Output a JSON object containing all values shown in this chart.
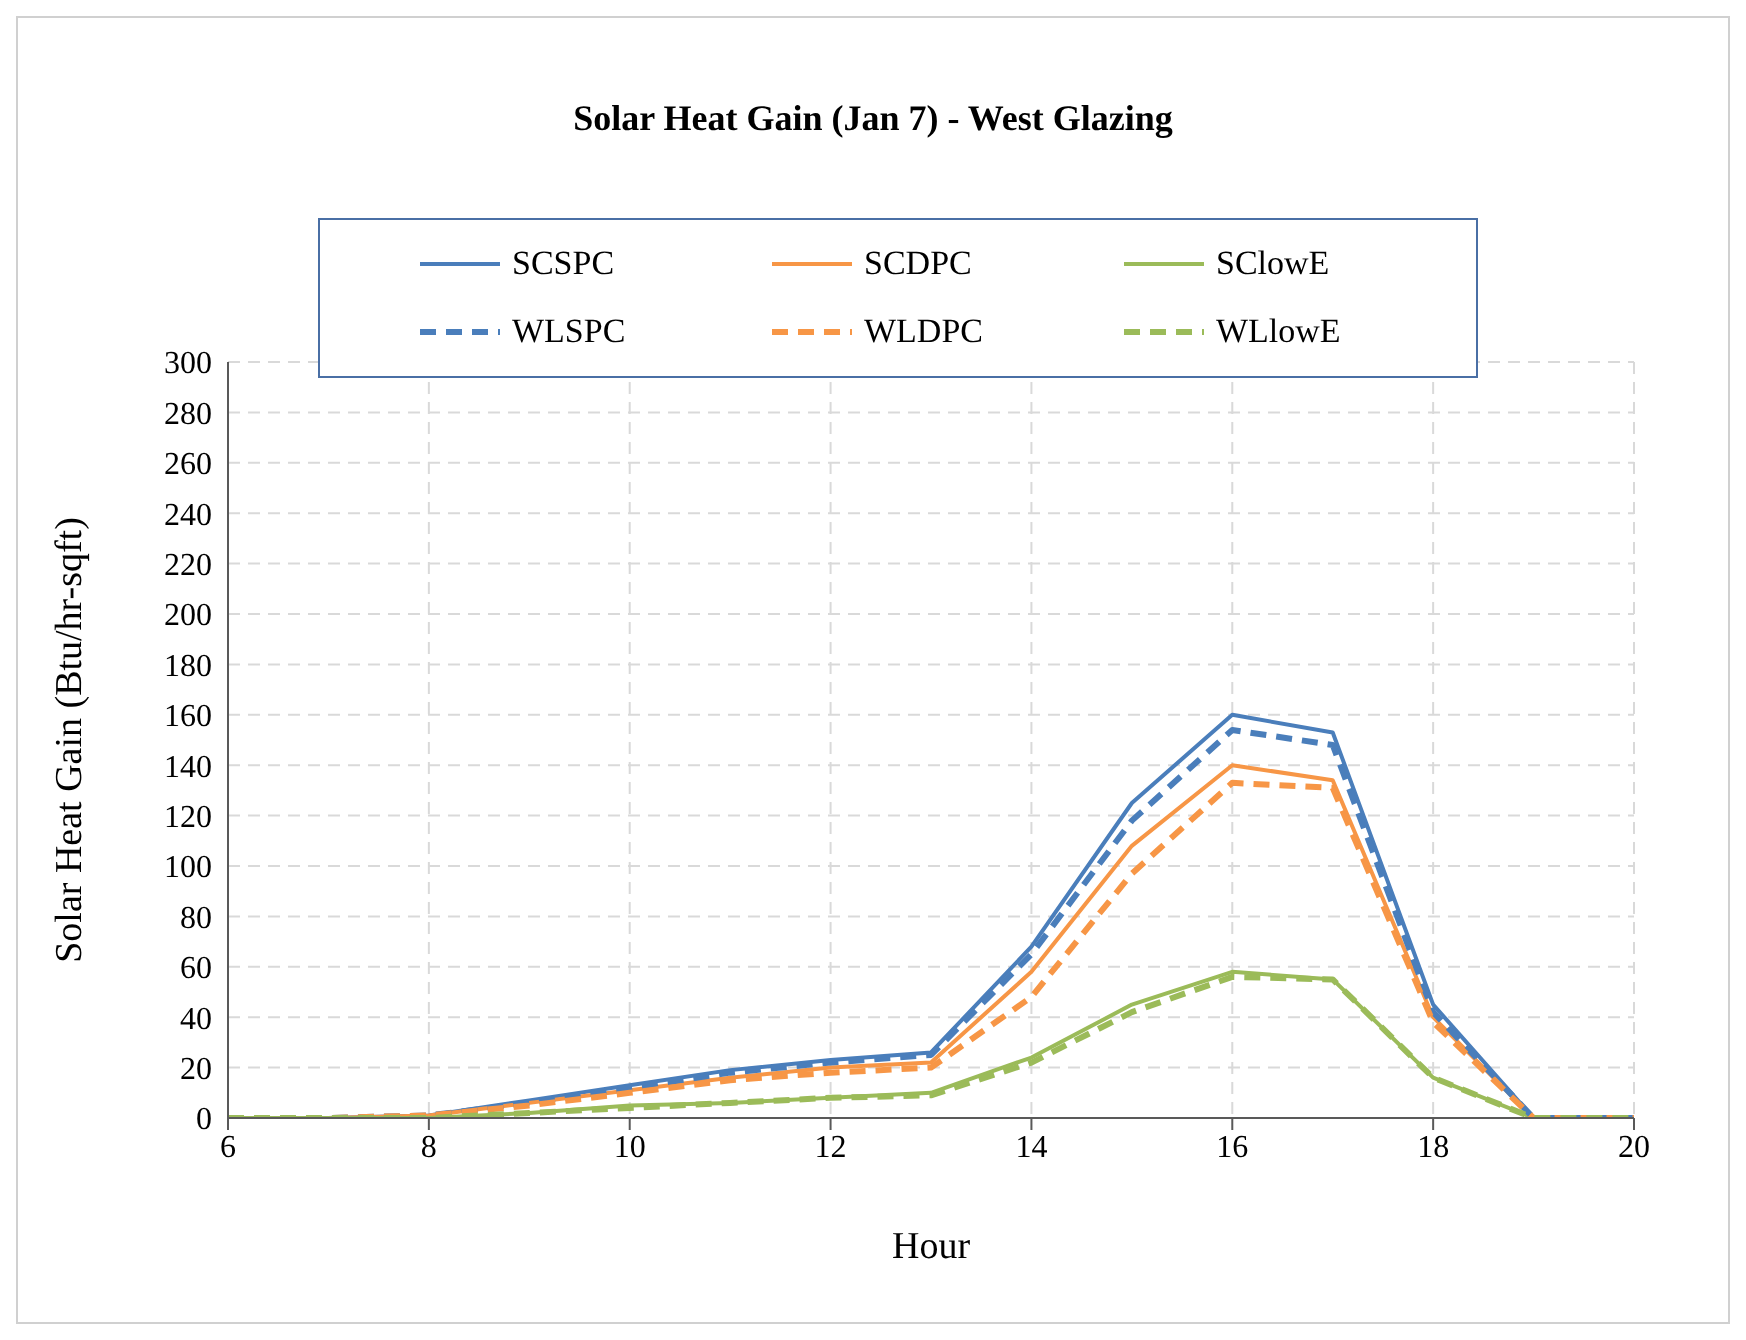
{
  "chart_data": {
    "type": "line",
    "title": "Solar Heat Gain (Jan 7) - West Glazing",
    "xlabel": "Hour",
    "ylabel": "Solar Heat Gain (Btu/hr-sqft)",
    "x": [
      6,
      7,
      8,
      9,
      10,
      11,
      12,
      13,
      14,
      15,
      16,
      17,
      18,
      19,
      20
    ],
    "xlim": [
      6,
      20
    ],
    "xticks": [
      6,
      8,
      10,
      12,
      14,
      16,
      18,
      20
    ],
    "ylim": [
      0,
      300
    ],
    "yticks": [
      0,
      20,
      40,
      60,
      80,
      100,
      120,
      140,
      160,
      180,
      200,
      220,
      240,
      260,
      280,
      300
    ],
    "grid": true,
    "legend": "top",
    "marker": "none",
    "series": [
      {
        "name": "SCSPC",
        "color": "#4a7ebb",
        "line_style": "solid",
        "values": [
          0,
          0,
          1,
          7,
          13,
          19,
          23,
          26,
          68,
          125,
          160,
          153,
          45,
          0,
          0
        ]
      },
      {
        "name": "SCDPC",
        "color": "#f79646",
        "line_style": "solid",
        "values": [
          0,
          0,
          1,
          6,
          11,
          16,
          20,
          22,
          58,
          108,
          140,
          134,
          40,
          0,
          0
        ]
      },
      {
        "name": "SClowE",
        "color": "#9bbb59",
        "line_style": "solid",
        "values": [
          0,
          0,
          0,
          2,
          5,
          6,
          8,
          10,
          24,
          45,
          58,
          55,
          16,
          0,
          0
        ]
      },
      {
        "name": "WLSPC",
        "color": "#4a7ebb",
        "line_style": "dashed",
        "values": [
          0,
          0,
          1,
          6,
          12,
          18,
          22,
          25,
          65,
          118,
          154,
          148,
          42,
          0,
          0
        ]
      },
      {
        "name": "WLDPC",
        "color": "#f79646",
        "line_style": "dashed",
        "values": [
          0,
          0,
          1,
          5,
          10,
          15,
          18,
          20,
          48,
          97,
          133,
          131,
          38,
          0,
          0
        ]
      },
      {
        "name": "WLlowE",
        "color": "#9bbb59",
        "line_style": "dashed",
        "values": [
          0,
          0,
          0,
          2,
          4,
          6,
          8,
          9,
          22,
          42,
          56,
          55,
          16,
          0,
          0
        ]
      }
    ]
  }
}
